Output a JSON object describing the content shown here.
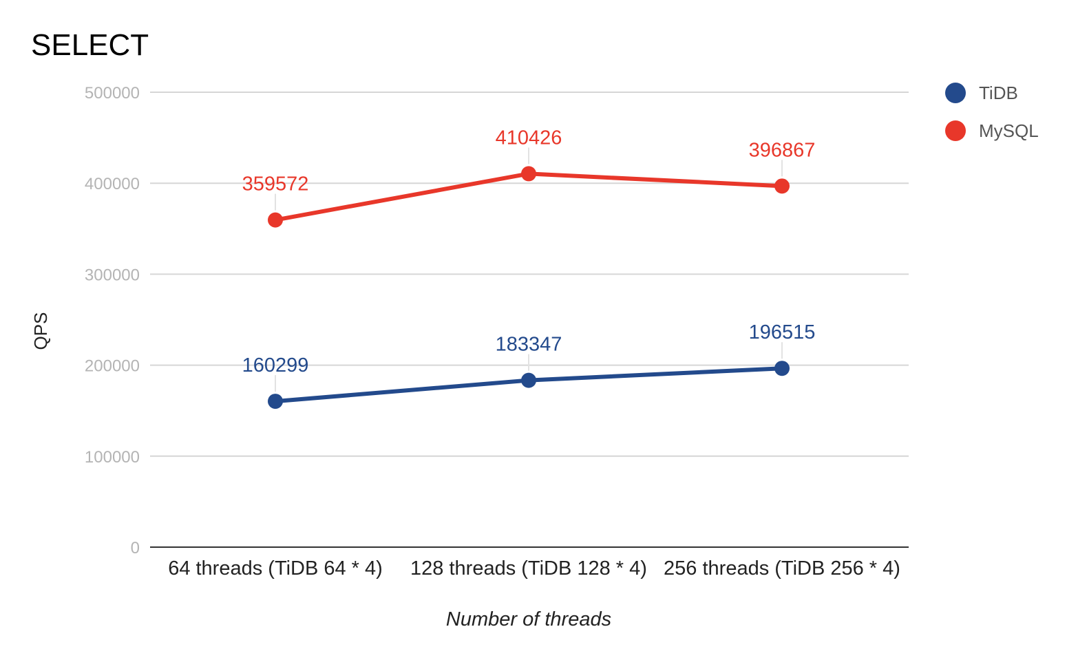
{
  "chart_data": {
    "type": "line",
    "title": "SELECT",
    "xlabel": "Number of threads",
    "ylabel": "QPS",
    "categories": [
      "64 threads (TiDB 64 * 4)",
      "128 threads (TiDB 128 * 4)",
      "256 threads (TiDB 256 * 4)"
    ],
    "ylim": [
      0,
      500000
    ],
    "yticks": [
      0,
      100000,
      200000,
      300000,
      400000,
      500000
    ],
    "grid": true,
    "legend_position": "right",
    "series": [
      {
        "name": "TiDB",
        "color": "#234a8c",
        "values": [
          160299,
          183347,
          196515
        ],
        "labels": [
          "160299",
          "183347",
          "196515"
        ]
      },
      {
        "name": "MySQL",
        "color": "#e8372a",
        "values": [
          359572,
          410426,
          396867
        ],
        "labels": [
          "359572",
          "410426",
          "396867"
        ]
      }
    ]
  }
}
